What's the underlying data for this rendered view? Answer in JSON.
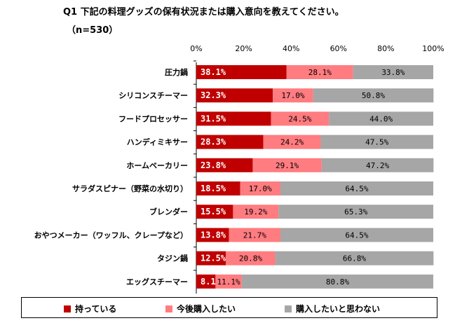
{
  "title": "Q1 下記の料理グッズの保有状況または購入意向を教えてください。",
  "subtitle": "（n=530）",
  "chart_data": {
    "type": "bar",
    "stacked": true,
    "orientation": "horizontal",
    "categories": [
      "圧力鍋",
      "シリコンスチーマー",
      "フードプロセッサー",
      "ハンディミキサー",
      "ホームベーカリー",
      "サラダスピナー（野菜の水切り）",
      "ブレンダー",
      "おやつメーカー（ワッフル、クレープなど）",
      "タジン鍋",
      "エッグスチーマー"
    ],
    "series": [
      {
        "name": "持っている",
        "color": "#C00000",
        "values": [
          38.1,
          32.3,
          31.5,
          28.3,
          23.8,
          18.5,
          15.5,
          13.8,
          12.5,
          8.1
        ]
      },
      {
        "name": "今後購入したい",
        "color": "#FF7C80",
        "values": [
          28.1,
          17.0,
          24.5,
          24.2,
          29.1,
          17.0,
          19.2,
          21.7,
          20.8,
          11.1
        ]
      },
      {
        "name": "購入したいと思わない",
        "color": "#A6A6A6",
        "values": [
          33.8,
          50.8,
          44.0,
          47.5,
          47.2,
          64.5,
          65.3,
          64.5,
          66.8,
          80.8
        ]
      }
    ],
    "xlim": [
      0,
      100
    ],
    "ticks": [
      "0%",
      "20%",
      "40%",
      "60%",
      "80%",
      "100%"
    ],
    "grid": false,
    "legend_position": "bottom"
  }
}
